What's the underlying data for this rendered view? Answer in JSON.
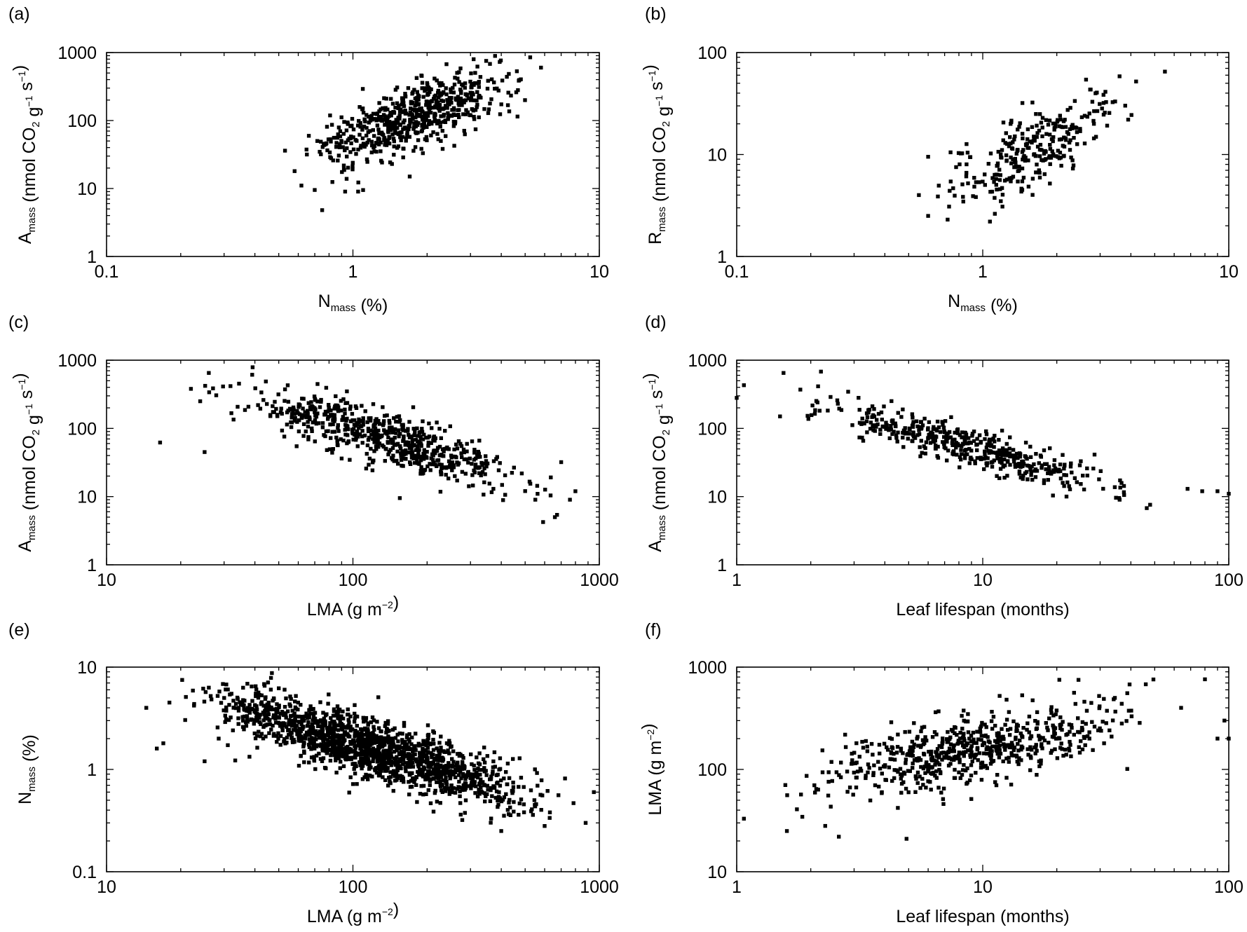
{
  "figure": {
    "background": "#ffffff",
    "marker_color": "#000000"
  },
  "chart_data": [
    {
      "panel": "(a)",
      "type": "scatter",
      "marker": "square",
      "xscale": "log",
      "yscale": "log",
      "xlim": [
        0.1,
        10
      ],
      "ylim": [
        1,
        1000
      ],
      "xticks": [
        "0.1",
        "1",
        "10"
      ],
      "yticks": [
        "1",
        "10",
        "100",
        "1000"
      ],
      "xlabel": {
        "main": "N",
        "sub": "mass",
        "rest": " (%)"
      },
      "ylabel": {
        "main": "A",
        "sub": "mass",
        "rest": " (nmol CO",
        "sub2": "2",
        "rest2": " g",
        "sup1": "−1",
        "rest3": " s",
        "sup2": "−1",
        "rest4": ")"
      },
      "trend": {
        "x_min": 0.52,
        "x_max": 6.0,
        "y_at_1": 55,
        "slope": 1.32,
        "scatter_sd": 0.24
      },
      "n_points": 650,
      "points": [
        [
          0.75,
          4.8
        ],
        [
          0.53,
          36
        ],
        [
          0.58,
          18
        ],
        [
          1.05,
          9
        ],
        [
          5.8,
          600
        ],
        [
          3.6,
          680
        ],
        [
          4.6,
          260
        ],
        [
          0.93,
          9
        ],
        [
          1.1,
          9.5
        ],
        [
          1.7,
          15
        ]
      ]
    },
    {
      "panel": "(b)",
      "type": "scatter",
      "marker": "square",
      "xscale": "log",
      "yscale": "log",
      "xlim": [
        0.1,
        10
      ],
      "ylim": [
        1,
        100
      ],
      "xticks": [
        "0.1",
        "1",
        "10"
      ],
      "yticks": [
        "1",
        "10",
        "100"
      ],
      "xlabel": {
        "main": "N",
        "sub": "mass",
        "rest": " (%)"
      },
      "ylabel": {
        "main": "R",
        "sub": "mass",
        "rest": " (nmol CO",
        "sub2": "2",
        "rest2": " g",
        "sup1": "−1",
        "rest3": " s",
        "sup2": "−1",
        "rest4": ")"
      },
      "trend": {
        "x_min": 0.55,
        "x_max": 4.4,
        "y_at_1": 6.0,
        "slope": 1.3,
        "scatter_sd": 0.16
      },
      "n_points": 290,
      "points": [
        [
          5.5,
          65
        ],
        [
          4.2,
          52
        ],
        [
          1.07,
          2.2
        ],
        [
          0.6,
          2.5
        ],
        [
          0.55,
          4
        ],
        [
          0.74,
          10.5
        ],
        [
          1.45,
          32
        ],
        [
          3.9,
          22
        ],
        [
          0.6,
          9.5
        ],
        [
          0.72,
          2.3
        ]
      ]
    },
    {
      "panel": "(c)",
      "type": "scatter",
      "marker": "square",
      "xscale": "log",
      "yscale": "log",
      "xlim": [
        10,
        1000
      ],
      "ylim": [
        1,
        1000
      ],
      "xticks": [
        "10",
        "100",
        "1000"
      ],
      "yticks": [
        "1",
        "10",
        "100",
        "1000"
      ],
      "xlabel": {
        "main": "LMA (g m",
        "sup1": "−2",
        "rest": ")"
      },
      "ylabel": {
        "main": "A",
        "sub": "mass",
        "rest": " (nmol CO",
        "sub2": "2",
        "rest2": " g",
        "sup1": "−1",
        "rest3": " s",
        "sup2": "−1",
        "rest4": ")"
      },
      "trend": {
        "x_min": 22,
        "x_max": 800,
        "y_at_100": 100,
        "slope": -1.09,
        "scatter_sd": 0.2
      },
      "n_points": 650,
      "points": [
        [
          16.5,
          62
        ],
        [
          22,
          380
        ],
        [
          26,
          650
        ],
        [
          25,
          45
        ],
        [
          660,
          5
        ],
        [
          800,
          12
        ],
        [
          760,
          9
        ],
        [
          700,
          32
        ],
        [
          155,
          9.5
        ],
        [
          550,
          9
        ],
        [
          24,
          250
        ]
      ]
    },
    {
      "panel": "(d)",
      "type": "scatter",
      "marker": "square",
      "xscale": "log",
      "yscale": "log",
      "xlim": [
        1,
        100
      ],
      "ylim": [
        1,
        1000
      ],
      "xticks": [
        "1",
        "10",
        "100"
      ],
      "yticks": [
        "1",
        "10",
        "100",
        "1000"
      ],
      "xlabel": {
        "main": "Leaf lifespan (months)"
      },
      "ylabel": {
        "main": "A",
        "sub": "mass",
        "rest": " (nmol CO",
        "sub2": "2",
        "rest2": " g",
        "sup1": "−1",
        "rest3": " s",
        "sup2": "−1",
        "rest4": ")"
      },
      "trend": {
        "x_min": 1.3,
        "x_max": 60,
        "y_at_1": 480,
        "slope": -0.98,
        "scatter_sd": 0.14
      },
      "n_points": 480,
      "points": [
        [
          1.07,
          430
        ],
        [
          1.55,
          650
        ],
        [
          2.2,
          680
        ],
        [
          100,
          11
        ],
        [
          90,
          12
        ],
        [
          78,
          12
        ],
        [
          68,
          13
        ],
        [
          36,
          9
        ],
        [
          1.5,
          150
        ],
        [
          1.0,
          280
        ]
      ]
    },
    {
      "panel": "(e)",
      "type": "scatter",
      "marker": "square",
      "xscale": "log",
      "yscale": "log",
      "xlim": [
        10,
        1000
      ],
      "ylim": [
        0.1,
        10
      ],
      "xticks": [
        "10",
        "100",
        "1000"
      ],
      "yticks": [
        "0.1",
        "1",
        "10"
      ],
      "xlabel": {
        "main": "LMA (g m",
        "sup1": "−2",
        "rest": ")"
      },
      "ylabel": {
        "main": "N",
        "sub": "mass",
        "rest": " (%)"
      },
      "trend": {
        "x_min": 16,
        "x_max": 900,
        "y_at_100": 1.8,
        "slope": -0.72,
        "scatter_sd": 0.15
      },
      "n_points": 1600,
      "points": [
        [
          14.5,
          4.0
        ],
        [
          16,
          1.6
        ],
        [
          17,
          1.8
        ],
        [
          18,
          4.5
        ],
        [
          26,
          6.3
        ],
        [
          950,
          0.6
        ],
        [
          880,
          0.3
        ],
        [
          400,
          0.25
        ],
        [
          600,
          0.28
        ],
        [
          25,
          1.2
        ]
      ]
    },
    {
      "panel": "(f)",
      "type": "scatter",
      "marker": "square",
      "xscale": "log",
      "yscale": "log",
      "xlim": [
        1,
        100
      ],
      "ylim": [
        10,
        1000
      ],
      "xticks": [
        "1",
        "10",
        "100"
      ],
      "yticks": [
        "10",
        "100",
        "1000"
      ],
      "xlabel": {
        "main": "Leaf lifespan (months)"
      },
      "ylabel": {
        "main": "LMA (g m",
        "sup1": "−2",
        "rest": ")"
      },
      "trend": {
        "x_min": 1.3,
        "x_max": 60,
        "y_at_1": 55,
        "slope": 0.48,
        "scatter_sd": 0.16
      },
      "n_points": 640,
      "points": [
        [
          1.07,
          33
        ],
        [
          1.6,
          25
        ],
        [
          2.6,
          22
        ],
        [
          4.9,
          21
        ],
        [
          24.5,
          750
        ],
        [
          46,
          680
        ],
        [
          80,
          760
        ],
        [
          96,
          300
        ],
        [
          100,
          200
        ],
        [
          90,
          200
        ],
        [
          64,
          400
        ],
        [
          12.5,
          480
        ]
      ]
    }
  ]
}
